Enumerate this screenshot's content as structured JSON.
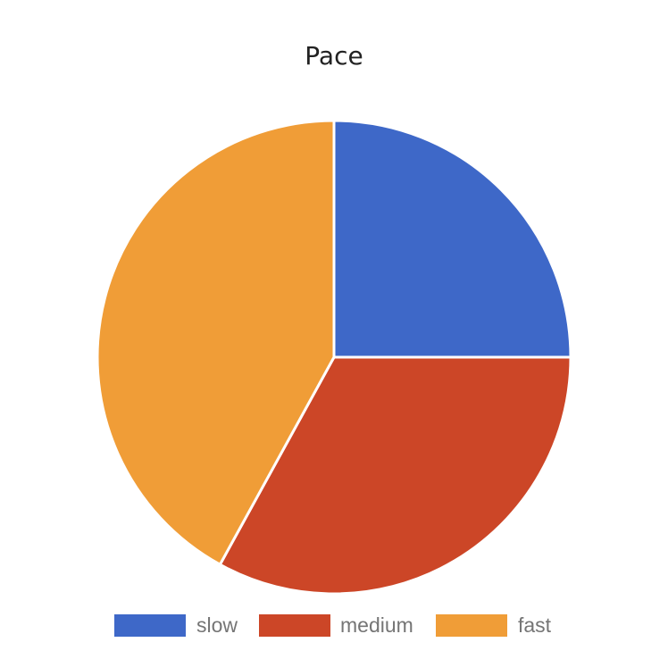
{
  "chart_data": {
    "type": "pie",
    "title": "Pace",
    "categories": [
      "slow",
      "medium",
      "fast"
    ],
    "values": [
      25,
      33,
      42
    ],
    "colors": [
      "#3e68c8",
      "#cc4627",
      "#f09d37"
    ],
    "start_angle": "12 o'clock",
    "direction": "clockwise",
    "legend_position": "bottom"
  }
}
